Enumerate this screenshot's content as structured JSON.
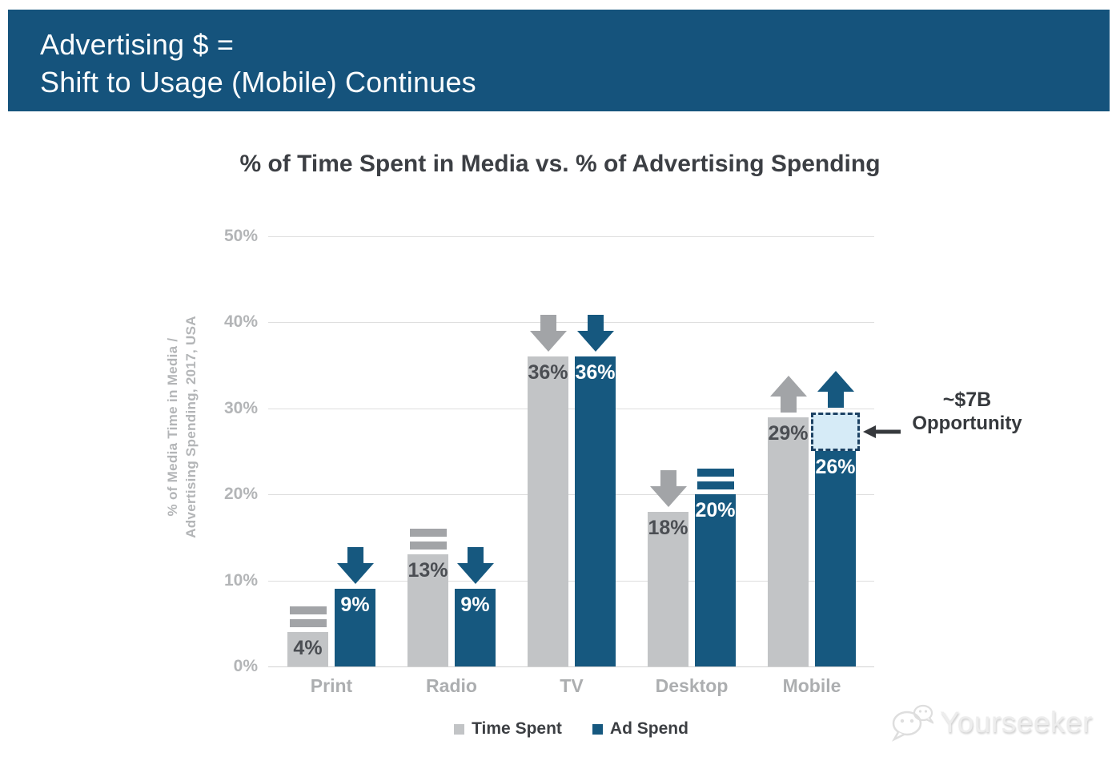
{
  "header": {
    "line1": "Advertising $ =",
    "line2": "Shift to Usage (Mobile) Continues",
    "bg_color": "#15537c"
  },
  "chart_data": {
    "type": "bar",
    "title": "% of Time Spent in Media vs. % of Advertising Spending",
    "ylabel_line1": "% of Media Time in Media /",
    "ylabel_line2": "Advertising Spending, 2017, USA",
    "categories": [
      "Print",
      "Radio",
      "TV",
      "Desktop",
      "Mobile"
    ],
    "series": [
      {
        "name": "Time Spent",
        "color": "#c2c4c6",
        "label_color": "#4b4e53",
        "indicator_color": "#a2a4a7",
        "values": [
          4,
          13,
          36,
          18,
          29
        ],
        "trend_indicators": [
          "equal",
          "equal",
          "down",
          "down",
          "up"
        ]
      },
      {
        "name": "Ad Spend",
        "color": "#16587f",
        "label_color": "#ffffff",
        "indicator_color": "#16587f",
        "values": [
          9,
          9,
          36,
          20,
          26
        ],
        "trend_indicators": [
          "down",
          "down",
          "down",
          "equal",
          "up"
        ]
      }
    ],
    "value_suffix": "%",
    "ylim": [
      0,
      50
    ],
    "yticks": [
      "0%",
      "10%",
      "20%",
      "30%",
      "40%",
      "50%"
    ],
    "grid": "horizontal",
    "legend_position": "bottom-center",
    "annotation": {
      "line1": "~$7B",
      "line2": "Opportunity",
      "category": "Mobile",
      "series": "Ad Spend",
      "box_from_pct": 26,
      "box_to_pct": 29.5,
      "box_fill": "#d6ebf7",
      "box_border": "#1d4264"
    }
  },
  "watermark": {
    "text": "Yourseeker"
  }
}
